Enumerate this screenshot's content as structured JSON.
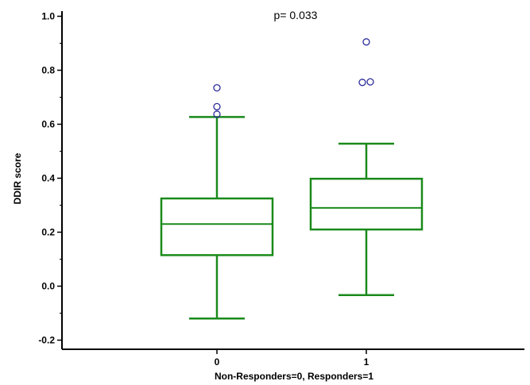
{
  "chart_data": {
    "type": "box",
    "title": "",
    "annotation": "p= 0.033",
    "xlabel": "Non-Responders=0, Responders=1",
    "ylabel": "DDIR score",
    "ylim": [
      -0.23,
      1.02
    ],
    "yticks": [
      -0.2,
      0.0,
      0.2,
      0.4,
      0.6,
      0.8,
      1.0
    ],
    "ytick_labels": [
      "-0.2",
      "0.0",
      "0.2",
      "0.4",
      "0.6",
      "0.8",
      "1.0"
    ],
    "grid": false,
    "groups": [
      {
        "label": "0",
        "whisker_low": -0.12,
        "q1": 0.115,
        "median": 0.23,
        "q3": 0.325,
        "whisker_high": 0.627,
        "outliers": [
          0.735,
          0.665,
          0.637
        ]
      },
      {
        "label": "1",
        "whisker_low": -0.033,
        "q1": 0.21,
        "median": 0.29,
        "q3": 0.398,
        "whisker_high": 0.528,
        "outliers": [
          0.905,
          0.755,
          0.757
        ]
      }
    ],
    "colors": {
      "box": "#1a8a1a",
      "outlier": "#2b2b9a",
      "axis": "#000000"
    }
  }
}
